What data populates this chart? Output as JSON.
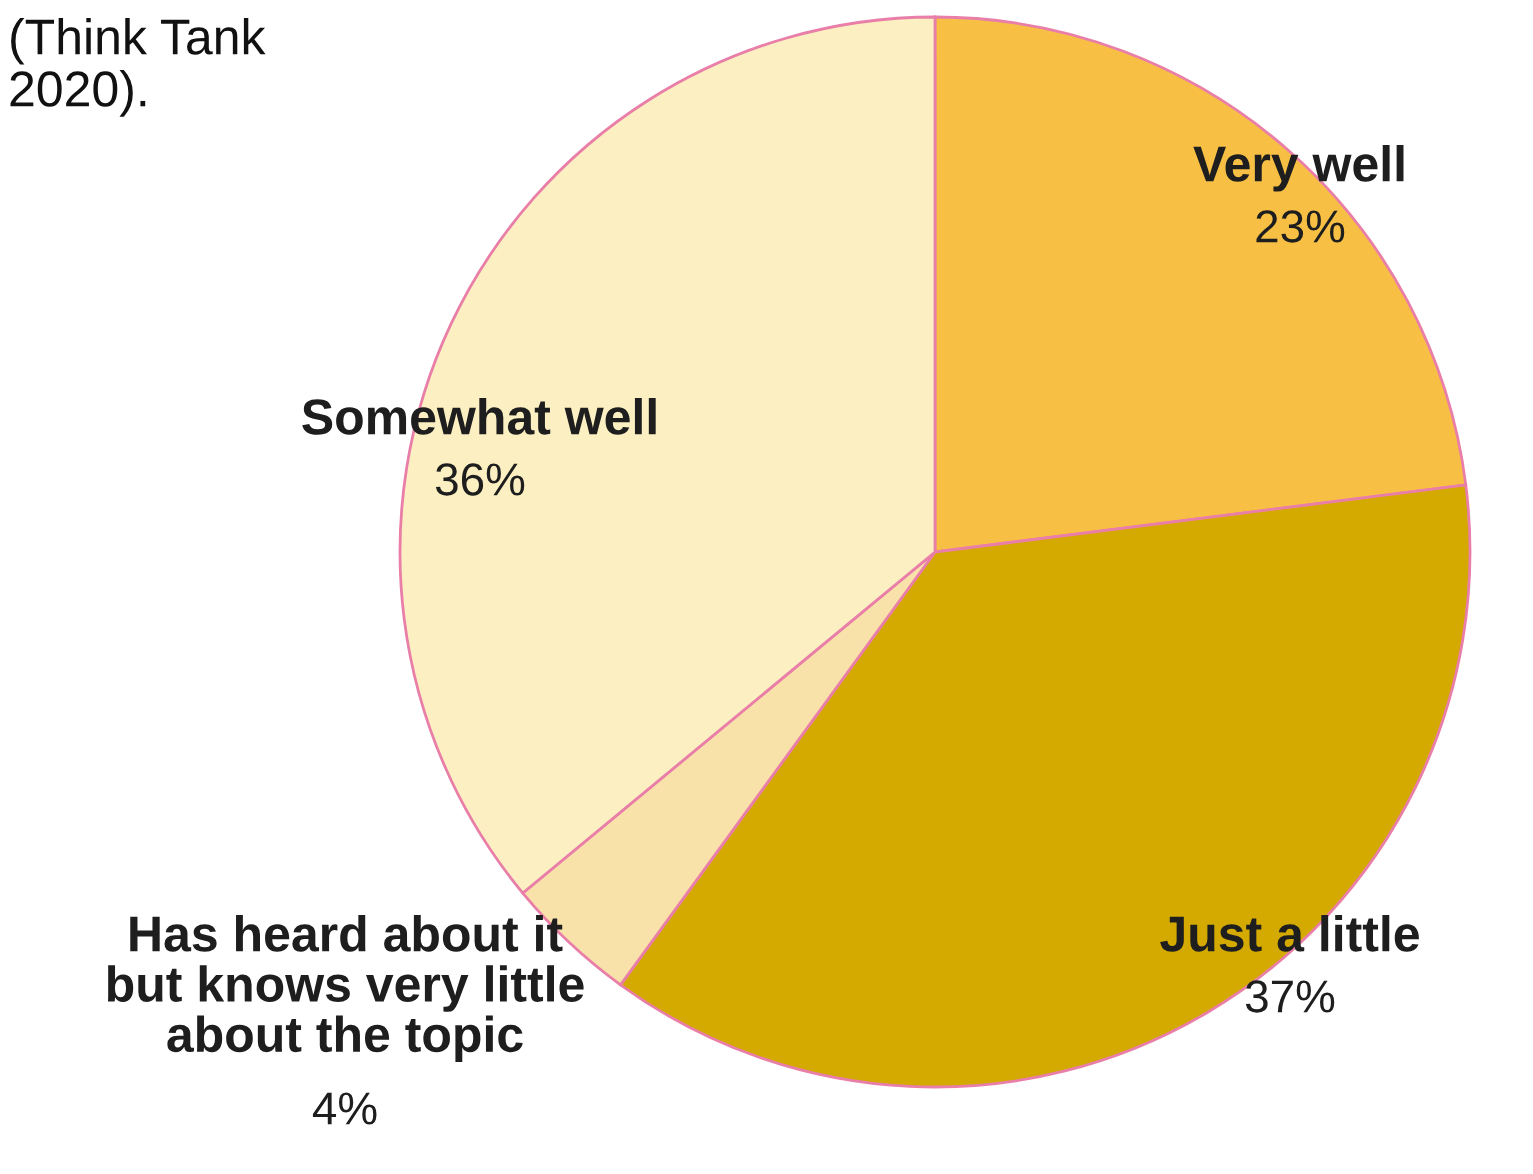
{
  "chart_data": {
    "type": "pie",
    "categories": [
      "Very well",
      "Just a little",
      "Has heard about it\nbut knows very little\nabout the topic",
      "Somewhat well"
    ],
    "values": [
      23,
      37,
      4,
      36
    ],
    "colors": [
      "#f7c045",
      "#d4aa00",
      "#f9e2aa",
      "#fcf0c2"
    ],
    "value_labels": [
      "23%",
      "37%",
      "4%",
      "36%"
    ],
    "annotations": [
      "(Think Tank\n2020)."
    ]
  }
}
